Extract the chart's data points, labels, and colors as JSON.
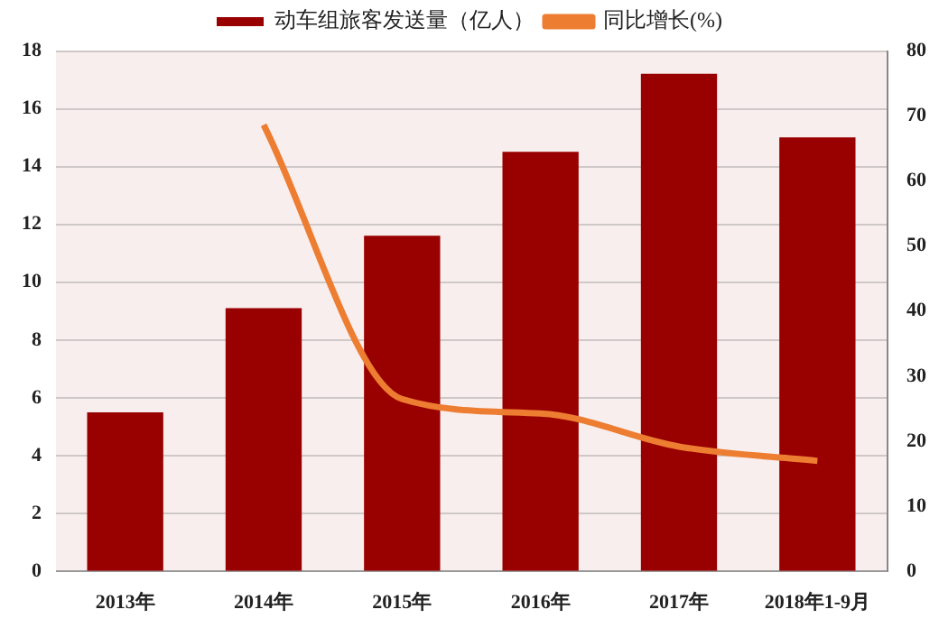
{
  "chart_data": {
    "type": "bar",
    "categories": [
      "2013年",
      "2014年",
      "2015年",
      "2016年",
      "2017年",
      "2018年1-9月"
    ],
    "series": [
      {
        "name": "动车组旅客发送量（亿人）",
        "color": "#990000",
        "values": [
          5.5,
          9.1,
          11.6,
          14.5,
          17.2,
          15.0
        ]
      },
      {
        "name": "同比增长(%)",
        "type": "line",
        "axis": "y2",
        "color": "#ed7d31",
        "values": [
          null,
          68.6,
          26.5,
          24.3,
          19.2,
          17.0
        ]
      }
    ],
    "ylim": [
      0,
      18
    ],
    "yticks": [
      0,
      2,
      4,
      6,
      8,
      10,
      12,
      14,
      16,
      18
    ],
    "y2lim": [
      0,
      80
    ],
    "y2ticks": [
      0,
      10,
      20,
      30,
      40,
      50,
      60,
      70,
      80
    ],
    "grid": "y",
    "legend": "top",
    "marker": "none"
  }
}
